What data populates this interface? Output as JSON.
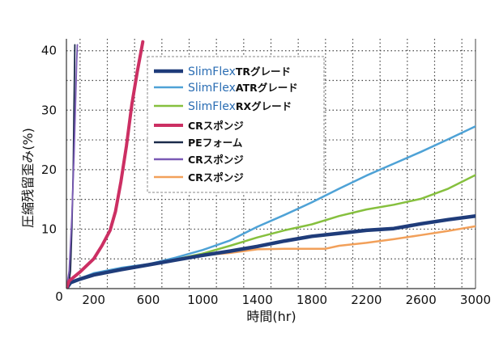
{
  "chart_data": {
    "type": "line",
    "title": "",
    "xlabel": "時間(hr)",
    "ylabel": "圧縮残留歪み(%)",
    "xlim": [
      0,
      3000
    ],
    "ylim": [
      0,
      42
    ],
    "x_ticks": [
      200,
      600,
      1000,
      1400,
      1800,
      2200,
      2600,
      3000
    ],
    "x_tick_labels": [
      "200",
      "600",
      "1000",
      "1400",
      "1800",
      "2200",
      "2600",
      "3000"
    ],
    "origin_label": "0",
    "y_ticks": [
      10,
      20,
      30,
      40
    ],
    "y_tick_labels": [
      "10",
      "20",
      "30",
      "40"
    ],
    "grid": true,
    "legend_position": "upper-center",
    "series": [
      {
        "name": "TRグレード",
        "brand": "SlimFlex",
        "color": "#1f3c7a",
        "width": 4.5,
        "points": [
          [
            0,
            0
          ],
          [
            30,
            1
          ],
          [
            100,
            1.6
          ],
          [
            200,
            2.3
          ],
          [
            400,
            3.2
          ],
          [
            600,
            4
          ],
          [
            800,
            4.8
          ],
          [
            1000,
            5.6
          ],
          [
            1200,
            6.3
          ],
          [
            1400,
            7.1
          ],
          [
            1600,
            8
          ],
          [
            1800,
            8.8
          ],
          [
            2000,
            9.3
          ],
          [
            2200,
            9.8
          ],
          [
            2400,
            10.1
          ],
          [
            2600,
            10.9
          ],
          [
            2800,
            11.6
          ],
          [
            3000,
            12.2
          ]
        ]
      },
      {
        "name": "ATRグレード",
        "brand": "SlimFlex",
        "color": "#4ea2d6",
        "width": 2.5,
        "points": [
          [
            0,
            0
          ],
          [
            30,
            1
          ],
          [
            100,
            1.7
          ],
          [
            200,
            2.6
          ],
          [
            400,
            3.5
          ],
          [
            600,
            4.1
          ],
          [
            800,
            5.2
          ],
          [
            1000,
            6.5
          ],
          [
            1200,
            8.1
          ],
          [
            1400,
            10.4
          ],
          [
            1600,
            12.4
          ],
          [
            1800,
            14.5
          ],
          [
            2000,
            16.8
          ],
          [
            2200,
            19
          ],
          [
            2400,
            21
          ],
          [
            2600,
            23
          ],
          [
            2800,
            25.1
          ],
          [
            3000,
            27.3
          ]
        ]
      },
      {
        "name": "RXグレード",
        "brand": "SlimFlex",
        "color": "#86c03e",
        "width": 2.5,
        "points": [
          [
            0,
            0
          ],
          [
            30,
            1
          ],
          [
            100,
            1.5
          ],
          [
            200,
            2.2
          ],
          [
            400,
            3.1
          ],
          [
            600,
            4
          ],
          [
            800,
            4.9
          ],
          [
            1000,
            5.9
          ],
          [
            1200,
            7.2
          ],
          [
            1400,
            8.6
          ],
          [
            1600,
            9.8
          ],
          [
            1800,
            10.8
          ],
          [
            2000,
            12.2
          ],
          [
            2200,
            13.3
          ],
          [
            2400,
            14.1
          ],
          [
            2600,
            15.1
          ],
          [
            2800,
            16.8
          ],
          [
            3000,
            19.1
          ]
        ]
      },
      {
        "name": "CRスポンジ",
        "color": "#cc2f63",
        "width": 4,
        "points": [
          [
            0,
            0
          ],
          [
            20,
            1.3
          ],
          [
            100,
            2.8
          ],
          [
            200,
            5
          ],
          [
            260,
            7.2
          ],
          [
            320,
            9.8
          ],
          [
            360,
            13
          ],
          [
            400,
            18
          ],
          [
            440,
            24
          ],
          [
            480,
            31
          ],
          [
            520,
            36.5
          ],
          [
            560,
            41.5
          ]
        ]
      },
      {
        "name": "PEフォーム",
        "color": "#1a2a4a",
        "width": 1.8,
        "points": [
          [
            0,
            0
          ],
          [
            20,
            1.3
          ],
          [
            30,
            3
          ],
          [
            40,
            10
          ],
          [
            50,
            20
          ],
          [
            55,
            30
          ],
          [
            60,
            38
          ],
          [
            62,
            41
          ]
        ]
      },
      {
        "name": "CRスポンジ",
        "color": "#7a5ab5",
        "width": 1.8,
        "points": [
          [
            0,
            0
          ],
          [
            20,
            3
          ],
          [
            40,
            12
          ],
          [
            55,
            22
          ],
          [
            68,
            32
          ],
          [
            75,
            38
          ],
          [
            80,
            41
          ]
        ]
      },
      {
        "name": "CRスポンジ",
        "color": "#f2a05a",
        "width": 2.5,
        "points": [
          [
            0,
            0
          ],
          [
            30,
            1
          ],
          [
            100,
            1.5
          ],
          [
            200,
            2.2
          ],
          [
            400,
            3.1
          ],
          [
            600,
            4
          ],
          [
            800,
            4.8
          ],
          [
            1000,
            5.6
          ],
          [
            1200,
            6
          ],
          [
            1400,
            6.6
          ],
          [
            1600,
            6.7
          ],
          [
            1800,
            6.7
          ],
          [
            1900,
            6.7
          ],
          [
            2000,
            7.2
          ],
          [
            2200,
            7.7
          ],
          [
            2400,
            8.3
          ],
          [
            2600,
            9
          ],
          [
            2800,
            9.7
          ],
          [
            3000,
            10.5
          ]
        ]
      }
    ]
  }
}
